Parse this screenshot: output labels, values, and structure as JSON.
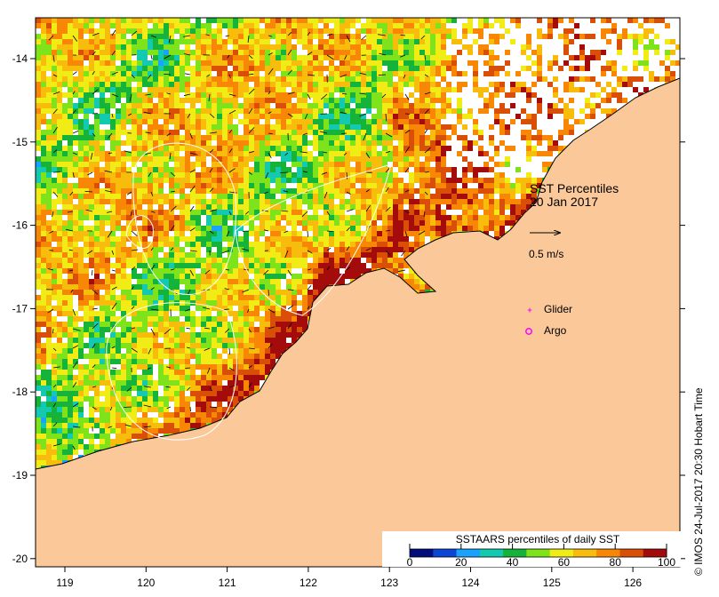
{
  "map": {
    "title": "SST Percentiles",
    "date": "20 Jan 2017",
    "velocity_label": "0.5 m/s",
    "glider_label": "Glider",
    "argo_label": "Argo",
    "credit": "© IMOS 24-Jul-2017 20:30 Hobart Time",
    "lon_ticks": [
      "119",
      "120",
      "121",
      "122",
      "123",
      "124",
      "125",
      "126"
    ],
    "lat_ticks": [
      "-14",
      "-15",
      "-16",
      "-17",
      "-18",
      "-19",
      "-20"
    ],
    "colors": {
      "land": "#fbc89a",
      "glider": "#ff00ff",
      "argo": "#ff00ff"
    }
  },
  "colorbar": {
    "title": "SSTAARS percentiles of daily SST",
    "ticks": [
      "0",
      "20",
      "40",
      "60",
      "80",
      "100"
    ],
    "colors": [
      "#000d7a",
      "#0a45d6",
      "#1aa2ff",
      "#13c9b0",
      "#16b33a",
      "#7ee31a",
      "#f2ec16",
      "#f8bd0c",
      "#f88705",
      "#d94f08",
      "#a40c0c"
    ]
  }
}
